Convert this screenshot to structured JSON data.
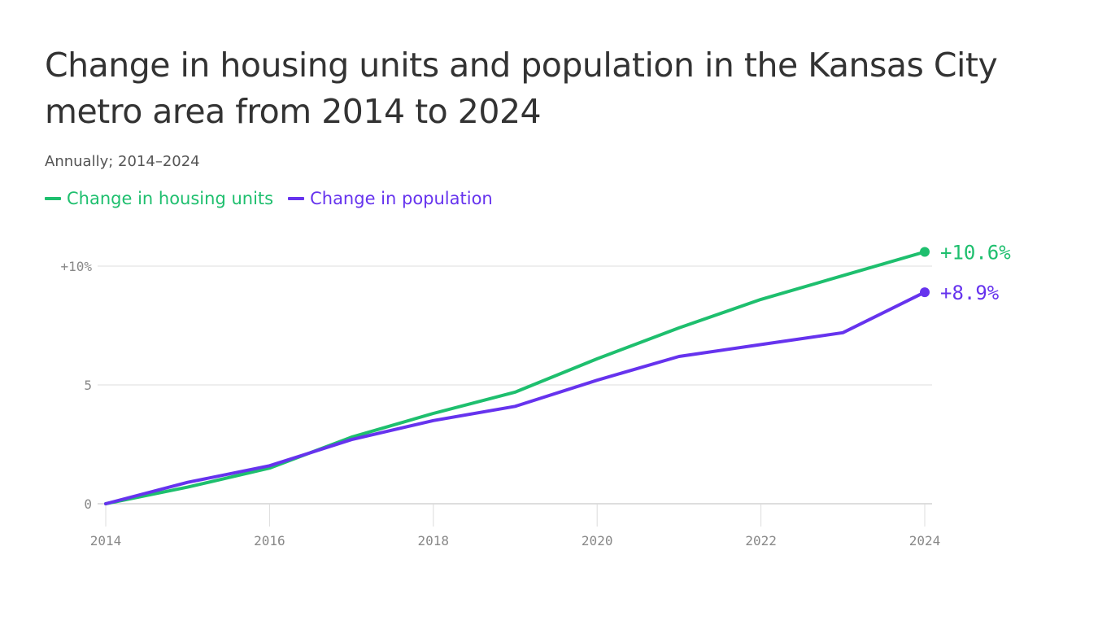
{
  "chart_data": {
    "type": "line",
    "title": "Change in housing units and population in the Kansas City metro area from 2014 to 2024",
    "subtitle": "Annually; 2014–2024",
    "x": [
      2014,
      2015,
      2016,
      2017,
      2018,
      2019,
      2020,
      2021,
      2022,
      2023,
      2024
    ],
    "x_ticks": [
      "2014",
      "2016",
      "2018",
      "2020",
      "2022",
      "2024"
    ],
    "y_ticks": [
      {
        "value": 10,
        "label": "+10%"
      },
      {
        "value": 5,
        "label": "5"
      },
      {
        "value": 0,
        "label": "0"
      }
    ],
    "ylim": [
      0,
      10
    ],
    "grid": "horizontal",
    "legend_position": "top-left",
    "series": [
      {
        "name": "Change in housing units",
        "color": "#1ebf6e",
        "values": [
          0,
          0.7,
          1.5,
          2.8,
          3.8,
          4.7,
          6.1,
          7.4,
          8.6,
          9.6,
          10.6
        ],
        "end_label": "+10.6%"
      },
      {
        "name": "Change in population",
        "color": "#6633ee",
        "values": [
          0,
          0.9,
          1.6,
          2.7,
          3.5,
          4.1,
          5.2,
          6.2,
          6.7,
          7.2,
          8.9
        ],
        "end_label": "+8.9%"
      }
    ]
  }
}
